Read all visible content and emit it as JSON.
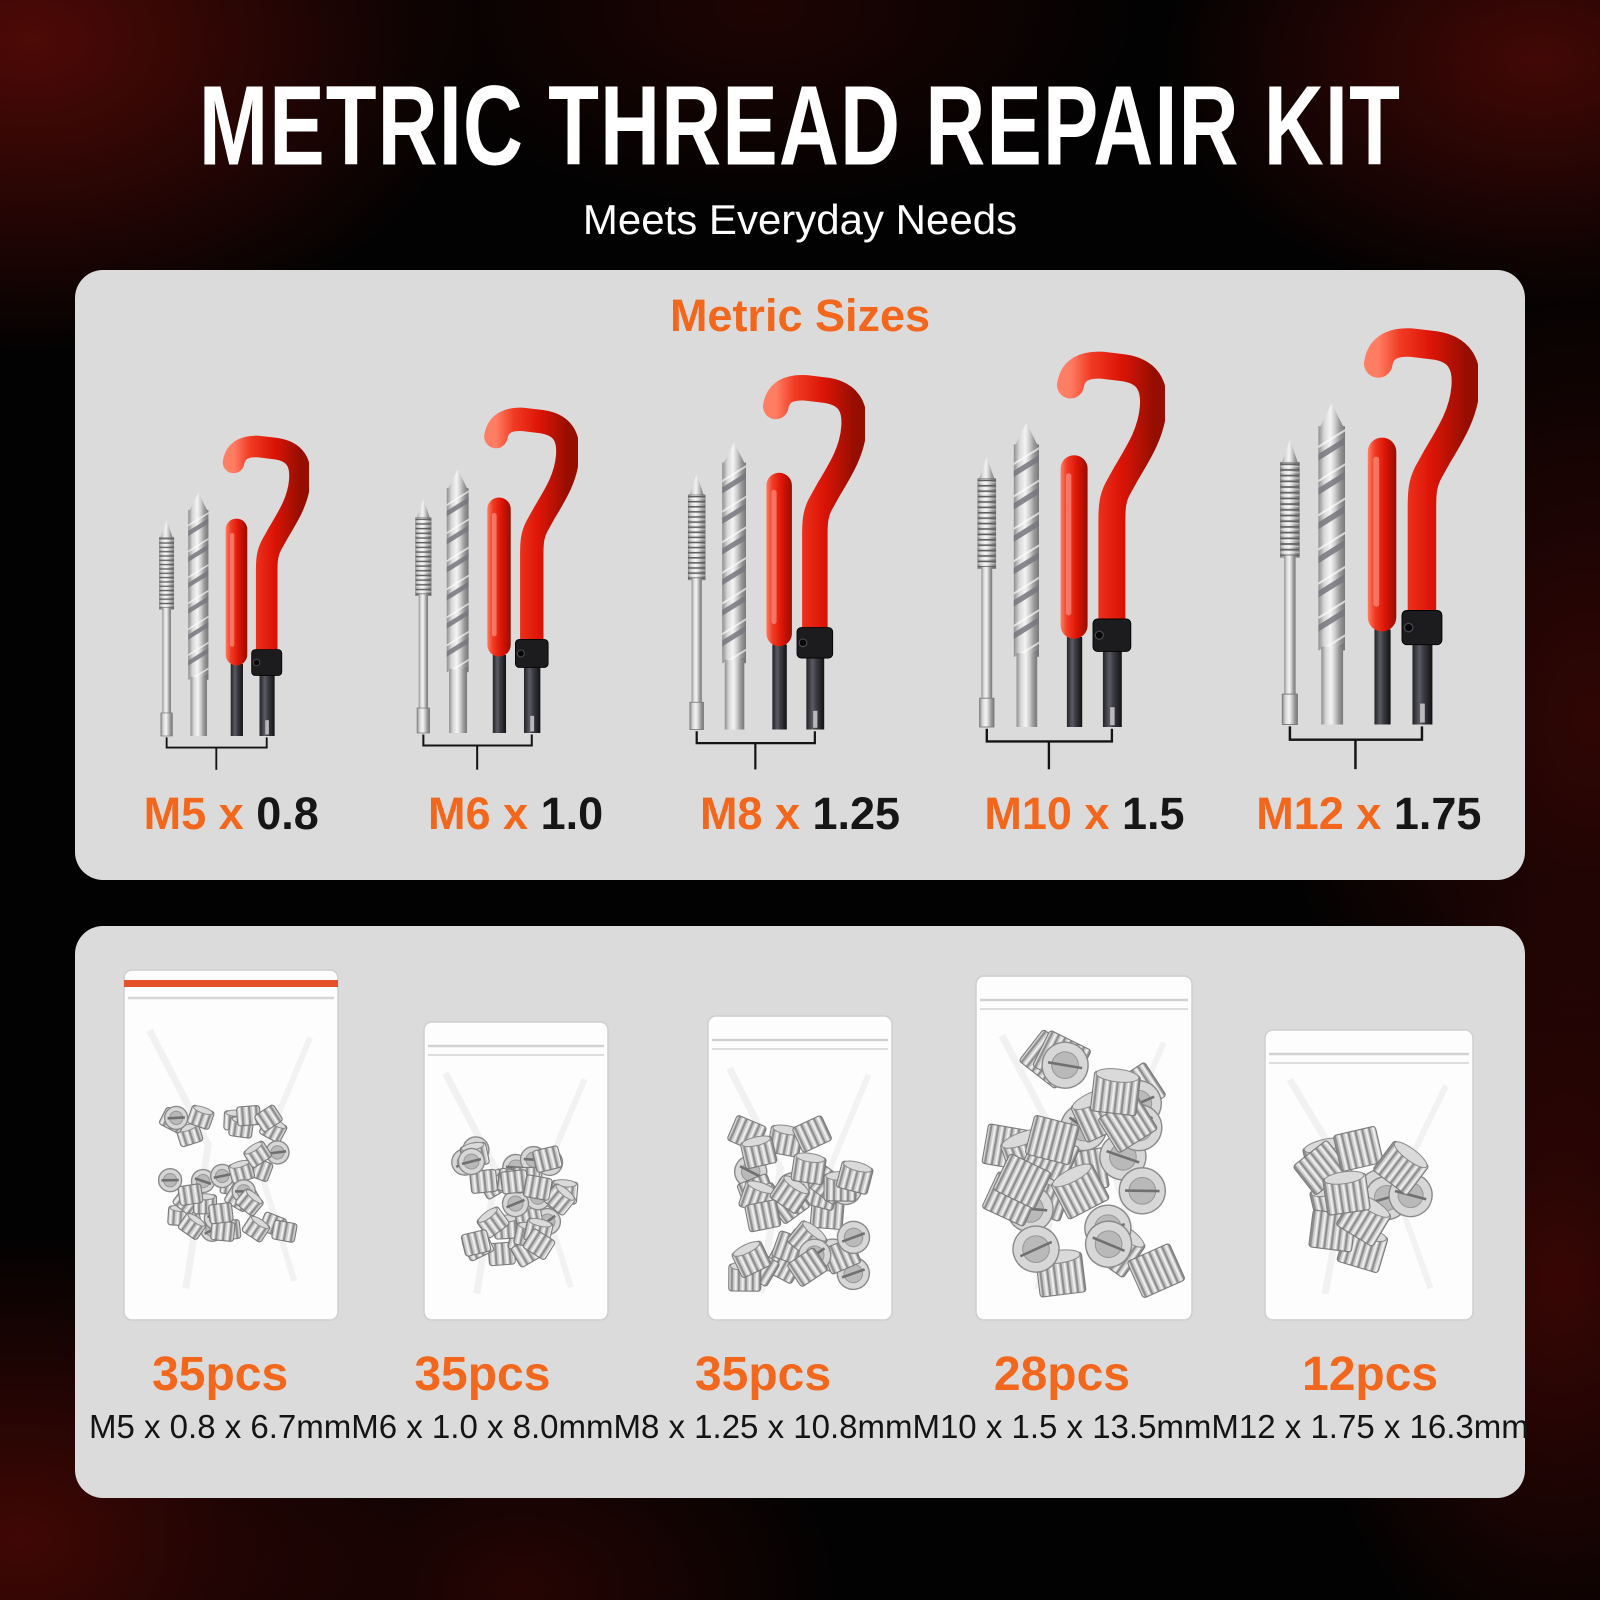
{
  "title": "METRIC THREAD REPAIR KIT",
  "subtitle": "Meets Everyday Needs",
  "colors": {
    "accent_orange": "#F2671C",
    "panel_background": "#DBDBDB",
    "title_text": "#FFFFFF",
    "body_text": "#161616",
    "handle_red": "#E2261C",
    "bag_seal_red": "#E4512C"
  },
  "sizes_panel": {
    "heading": "Metric Sizes",
    "items": [
      {
        "thread": "M5 x",
        "pitch": "0.8"
      },
      {
        "thread": "M6 x",
        "pitch": "1.0"
      },
      {
        "thread": "M8 x",
        "pitch": "1.25"
      },
      {
        "thread": "M10 x",
        "pitch": "1.5"
      },
      {
        "thread": "M12 x",
        "pitch": "1.75"
      }
    ]
  },
  "inserts_panel": {
    "items": [
      {
        "count": "35pcs",
        "dims": "M5 x 0.8 x 6.7mm"
      },
      {
        "count": "35pcs",
        "dims": "M6 x 1.0 x 8.0mm"
      },
      {
        "count": "35pcs",
        "dims": "M8 x 1.25 x 10.8mm"
      },
      {
        "count": "28pcs",
        "dims": "M10 x 1.5 x 13.5mm"
      },
      {
        "count": "12pcs",
        "dims": "M12 x 1.75 x 16.3mm"
      }
    ]
  }
}
